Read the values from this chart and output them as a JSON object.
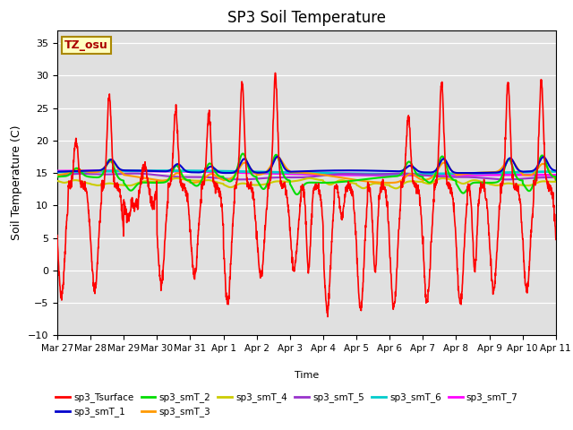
{
  "title": "SP3 Soil Temperature",
  "ylabel": "Soil Temperature (C)",
  "xlabel": "Time",
  "ylim": [
    -10,
    37
  ],
  "yticks": [
    -10,
    -5,
    0,
    5,
    10,
    15,
    20,
    25,
    30,
    35
  ],
  "x_labels": [
    "Mar 27",
    "Mar 28",
    "Mar 29",
    "Mar 30",
    "Mar 31",
    "Apr 1",
    "Apr 2",
    "Apr 3",
    "Apr 4",
    "Apr 5",
    "Apr 6",
    "Apr 7",
    "Apr 8",
    "Apr 9",
    "Apr 10",
    "Apr 11"
  ],
  "n_days": 15,
  "bg_color": "#e0e0e0",
  "tz_label": "TZ_osu",
  "legend_entries": [
    "sp3_Tsurface",
    "sp3_smT_1",
    "sp3_smT_2",
    "sp3_smT_3",
    "sp3_smT_4",
    "sp3_smT_5",
    "sp3_smT_6",
    "sp3_smT_7"
  ],
  "line_colors": [
    "#ff0000",
    "#0000cc",
    "#00dd00",
    "#ff9900",
    "#cccc00",
    "#9933cc",
    "#00cccc",
    "#ff00ff"
  ],
  "line_widths": [
    1.2,
    1.5,
    1.5,
    1.5,
    1.5,
    1.5,
    2.0,
    2.0
  ]
}
